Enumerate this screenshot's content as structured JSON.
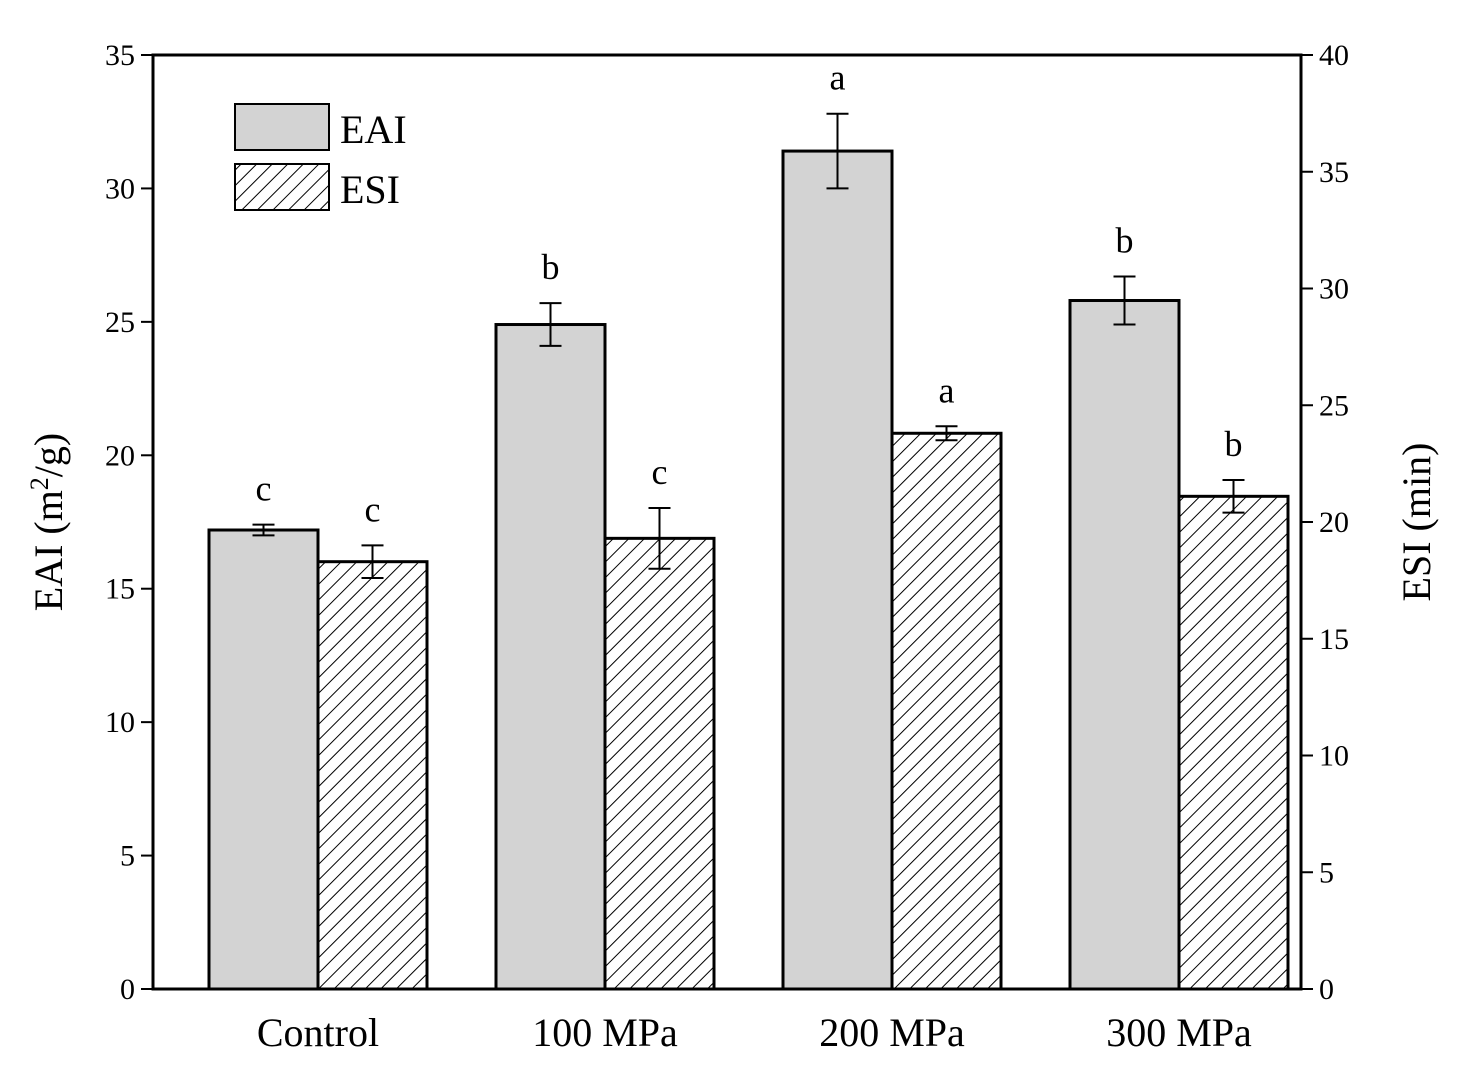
{
  "chart_data": {
    "type": "bar",
    "categories": [
      "Control",
      "100 MPa",
      "200 MPa",
      "300 MPa"
    ],
    "left_axis": {
      "label_prefix": "EAI (m",
      "label_sup": "2",
      "label_suffix": "/g)",
      "ylim": [
        0,
        35
      ],
      "ticks": [
        "0",
        "5",
        "10",
        "15",
        "20",
        "25",
        "30",
        "35"
      ]
    },
    "right_axis": {
      "label": "ESI (min)",
      "ylim": [
        0,
        40
      ],
      "ticks": [
        "0",
        "5",
        "10",
        "15",
        "20",
        "25",
        "30",
        "35",
        "40"
      ]
    },
    "series": [
      {
        "name": "EAI",
        "axis": "left",
        "fill": "#d3d3d3",
        "pattern": "solid",
        "values": [
          17.2,
          24.9,
          31.4,
          25.8
        ],
        "errors": [
          0.2,
          0.8,
          1.4,
          0.9
        ],
        "significance": [
          "c",
          "b",
          "a",
          "b"
        ]
      },
      {
        "name": "ESI",
        "axis": "right",
        "fill": "#ffffff",
        "pattern": "hatch",
        "values": [
          18.3,
          19.3,
          23.8,
          21.1
        ],
        "errors": [
          0.7,
          1.3,
          0.3,
          0.7
        ],
        "significance": [
          "c",
          "c",
          "a",
          "b"
        ]
      }
    ],
    "legend": {
      "position": "top-left",
      "entries": [
        "EAI",
        "ESI"
      ]
    },
    "grid": false
  }
}
